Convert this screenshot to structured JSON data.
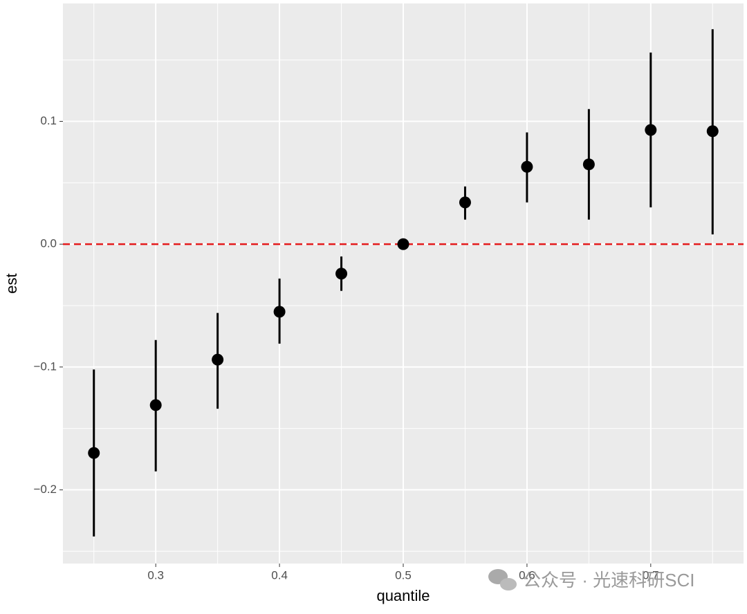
{
  "chart_data": {
    "type": "errorpoint",
    "x_label": "quantile",
    "y_label": "est",
    "x": [
      0.25,
      0.3,
      0.35,
      0.4,
      0.45,
      0.5,
      0.55,
      0.6,
      0.65,
      0.7,
      0.75
    ],
    "values": [
      -0.17,
      -0.131,
      -0.094,
      -0.055,
      -0.024,
      0,
      0.034,
      0.063,
      0.065,
      0.093,
      0.092
    ],
    "lower": [
      -0.238,
      -0.185,
      -0.134,
      -0.081,
      -0.038,
      0,
      0.02,
      0.034,
      0.02,
      0.03,
      0.008
    ],
    "upper": [
      -0.102,
      -0.078,
      -0.056,
      -0.028,
      -0.01,
      0,
      0.047,
      0.091,
      0.11,
      0.156,
      0.175
    ],
    "color": "#000000",
    "reference_line": {
      "value": 0,
      "color": "#e41a1c"
    },
    "xlim": [
      0.225,
      0.775
    ],
    "xticks": [
      0.3,
      0.4,
      0.5,
      0.6,
      0.7
    ],
    "ylim": [
      -0.26,
      0.196
    ],
    "yticks": [
      {
        "value": -0.2,
        "label": "−0.2"
      },
      {
        "value": -0.1,
        "label": "−0.1"
      },
      {
        "value": 0,
        "label": "0.0"
      },
      0.1
    ],
    "grid": true,
    "annotation": "公众号 · 光速科研SCI"
  }
}
